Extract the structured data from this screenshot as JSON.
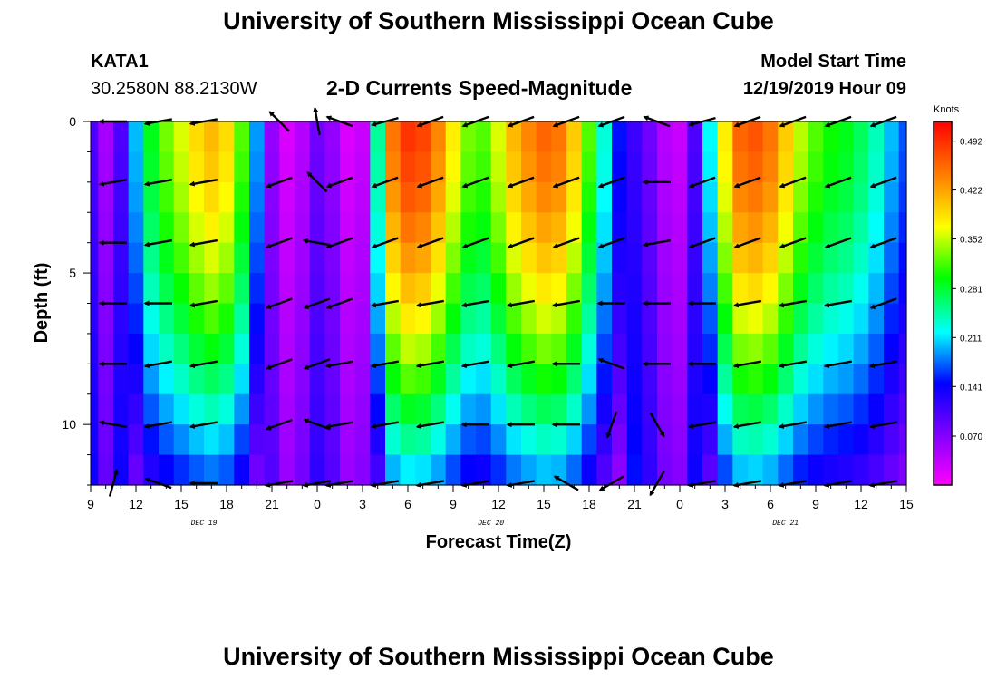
{
  "header": {
    "title": "University of Southern Mississippi Ocean Cube",
    "station_id": "KATA1",
    "station_location": "30.2580N 88.2130W",
    "plot_title": "2-D Currents Speed-Magnitude",
    "model_start_label": "Model Start Time",
    "model_start_value": "12/19/2019 Hour 09"
  },
  "footer": {
    "title": "University of Southern Mississippi Ocean Cube"
  },
  "chart_data": {
    "type": "heatmap",
    "title": "2-D Currents Speed-Magnitude",
    "xlabel": "Forecast Time(Z)",
    "ylabel": "Depth (ft)",
    "x_ticks": [
      "9",
      "12",
      "15",
      "18",
      "21",
      "0",
      "3",
      "6",
      "9",
      "12",
      "15",
      "18",
      "21",
      "0",
      "3",
      "6",
      "9",
      "12",
      "15"
    ],
    "x_hour_range": [
      0,
      54
    ],
    "date_labels": [
      {
        "text": "DEC 19",
        "hour": 7.5
      },
      {
        "text": "DEC 20",
        "hour": 26.5
      },
      {
        "text": "DEC 21",
        "hour": 46
      }
    ],
    "y_ticks": [
      "0",
      "5",
      "10"
    ],
    "y_tick_values": [
      0,
      5,
      10
    ],
    "ylim": [
      0,
      12
    ],
    "y_inverted": true,
    "colorbar": {
      "unit": "Knots",
      "ticks": [
        "0.492",
        "0.422",
        "0.352",
        "0.281",
        "0.211",
        "0.141",
        "0.070"
      ],
      "range": [
        0.0,
        0.52
      ]
    },
    "profile_hours": [
      0,
      1,
      2,
      3,
      4,
      5,
      6,
      7,
      8,
      9,
      10,
      11,
      12,
      13,
      14,
      15,
      16,
      17,
      18,
      19,
      20,
      21,
      22,
      23,
      24,
      25,
      26,
      27,
      28,
      29,
      30,
      31,
      32,
      33,
      34,
      35,
      36,
      37,
      38,
      39,
      40,
      41,
      42,
      43,
      44,
      45,
      46,
      47,
      48,
      49,
      50,
      51,
      52,
      53,
      54
    ],
    "surface_speed_knots": [
      0.1,
      0.05,
      0.1,
      0.2,
      0.29,
      0.33,
      0.36,
      0.39,
      0.41,
      0.39,
      0.32,
      0.19,
      0.06,
      0.02,
      0.04,
      0.08,
      0.06,
      0.02,
      0.03,
      0.25,
      0.45,
      0.49,
      0.48,
      0.44,
      0.38,
      0.33,
      0.32,
      0.36,
      0.41,
      0.44,
      0.46,
      0.45,
      0.4,
      0.32,
      0.23,
      0.15,
      0.11,
      0.08,
      0.04,
      0.03,
      0.1,
      0.22,
      0.38,
      0.46,
      0.47,
      0.45,
      0.4,
      0.35,
      0.32,
      0.3,
      0.29,
      0.27,
      0.24,
      0.2,
      0.17
    ],
    "vector_rows_depth_ft": [
      0,
      2,
      4,
      6,
      8,
      10,
      12
    ],
    "vector_cols_hour": [
      1.5,
      4.5,
      7.5,
      12.5,
      15,
      16.5,
      19.5,
      22.5,
      25.5,
      28.5,
      31.5,
      34.5,
      37.5,
      40.5,
      43.5,
      46.5,
      49.5,
      52.5
    ],
    "vector_angles_deg": [
      [
        180,
        190,
        190,
        135,
        100,
        160,
        195,
        200,
        200,
        200,
        200,
        200,
        160,
        195,
        200,
        200,
        200,
        200
      ],
      [
        190,
        190,
        190,
        200,
        135,
        200,
        200,
        200,
        200,
        200,
        200,
        200,
        180,
        200,
        200,
        200,
        200,
        200
      ],
      [
        180,
        190,
        190,
        200,
        170,
        200,
        200,
        200,
        200,
        200,
        200,
        200,
        190,
        200,
        200,
        200,
        200,
        200
      ],
      [
        180,
        180,
        190,
        200,
        200,
        200,
        190,
        190,
        190,
        190,
        190,
        180,
        180,
        180,
        190,
        190,
        190,
        200
      ],
      [
        180,
        190,
        190,
        200,
        200,
        190,
        190,
        190,
        190,
        190,
        180,
        160,
        180,
        180,
        190,
        190,
        190,
        190
      ],
      [
        170,
        190,
        190,
        200,
        160,
        190,
        190,
        190,
        180,
        180,
        180,
        250,
        300,
        190,
        190,
        190,
        190,
        190
      ],
      [
        75,
        160,
        180,
        190,
        190,
        190,
        190,
        190,
        190,
        190,
        150,
        210,
        240,
        190,
        190,
        190,
        190,
        190
      ]
    ]
  }
}
